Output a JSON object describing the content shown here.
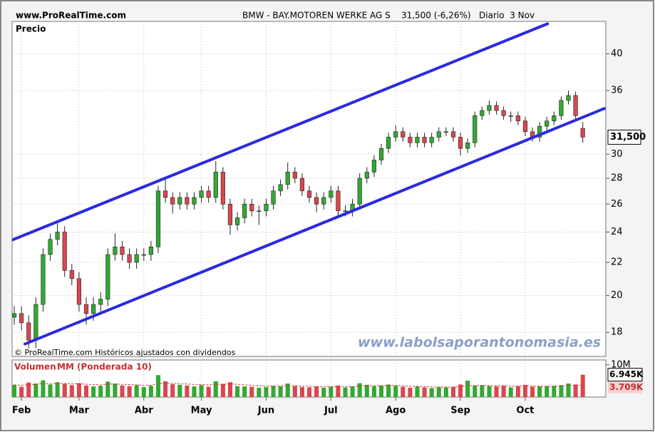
{
  "chart_data": {
    "type": "candlestick",
    "site": "www.ProRealTime.com",
    "title": "BMW - BAY.MOTOREN WERKE AG S    31,500 (-6,26%)   Diario  3 Nov",
    "panel_label": "Precio",
    "copyright": "© ProRealTime.com Históricos ajustados con dividendos",
    "watermark": "www.labolsaporantonomasia.es",
    "up_color": "#33a833",
    "down_color": "#d9474f",
    "log_scale": true,
    "grid": true,
    "xlim": [
      -0.3,
      82.2
    ],
    "xticks": [
      {
        "value": 1,
        "label": "Feb"
      },
      {
        "value": 9,
        "label": "Mar"
      },
      {
        "value": 18,
        "label": "Abr"
      },
      {
        "value": 26,
        "label": "May"
      },
      {
        "value": 35,
        "label": "Jun"
      },
      {
        "value": 44,
        "label": "Jul"
      },
      {
        "value": 53,
        "label": "Ago"
      },
      {
        "value": 62,
        "label": "Sep"
      },
      {
        "value": 71,
        "label": "Oct"
      }
    ],
    "ylim": [
      16.8,
      43.9
    ],
    "yticks": [
      18,
      20,
      22,
      24,
      26,
      28,
      30,
      36,
      40
    ],
    "open": [
      18.8,
      19,
      18.5,
      17.6,
      19.5,
      22.5,
      23.5,
      24,
      21.5,
      21,
      19.5,
      19,
      19.5,
      19.8,
      22.5,
      23,
      22.5,
      22,
      22.5,
      22.5,
      23,
      27,
      26.5,
      26,
      26.5,
      26,
      26.5,
      27,
      26.5,
      28.5,
      26,
      24.5,
      25,
      26,
      25.5,
      25.5,
      26,
      27,
      27.5,
      28.5,
      28,
      27,
      26.5,
      26,
      26.5,
      27,
      25.5,
      25.5,
      26,
      28,
      28.5,
      29.5,
      30.5,
      31.5,
      32,
      31.5,
      31,
      31.5,
      31,
      31.5,
      32,
      32,
      31.5,
      30.5,
      31,
      33.5,
      34,
      34.5,
      34,
      33.5,
      33.5,
      33,
      32,
      31.5,
      32.5,
      33,
      33.5,
      35,
      35.5,
      32.3
    ],
    "high": [
      19.4,
      19.4,
      18.9,
      19.9,
      22.9,
      23.9,
      24.6,
      24.4,
      21.9,
      21.4,
      19.9,
      19.9,
      20.2,
      22.9,
      23.9,
      23.4,
      22.9,
      22.9,
      22.9,
      23.4,
      27.4,
      28,
      26.9,
      26.9,
      26.9,
      26.9,
      27.4,
      27.4,
      29.4,
      28.9,
      26.4,
      25.4,
      26.4,
      26.4,
      25.9,
      26.4,
      27.4,
      27.9,
      29.3,
      28.9,
      28.4,
      27.4,
      26.9,
      26.9,
      27.4,
      27.4,
      25.9,
      26.4,
      28.4,
      28.9,
      29.9,
      30.9,
      31.9,
      32.6,
      32.4,
      31.9,
      31.9,
      31.9,
      31.9,
      32.4,
      32.4,
      32.4,
      31.9,
      31.4,
      33.9,
      34.4,
      35,
      34.9,
      34.4,
      33.9,
      33.9,
      33.4,
      32.4,
      32.9,
      33.4,
      33.9,
      35.4,
      36,
      35.9,
      32.9
    ],
    "low": [
      18.4,
      18.1,
      17.2,
      17.2,
      19.1,
      22.1,
      23.1,
      21.1,
      20.6,
      19.1,
      18.4,
      18.6,
      19.1,
      19.4,
      22.1,
      22.1,
      21.6,
      21.6,
      22.1,
      22.1,
      22.6,
      26.1,
      25.3,
      25.6,
      25.6,
      25.6,
      26.1,
      26.1,
      26.1,
      25.6,
      23.8,
      24.1,
      24.6,
      25.1,
      24.5,
      25.1,
      25.6,
      26.6,
      27.1,
      27.6,
      26.6,
      26.1,
      25.4,
      25.6,
      26.1,
      25.1,
      25.1,
      25.1,
      25.6,
      27.6,
      28.1,
      29.1,
      30.1,
      31.1,
      31.1,
      30.6,
      30.6,
      30.6,
      30.6,
      31.1,
      31.6,
      31.1,
      29.9,
      30.1,
      30.6,
      33.1,
      33.6,
      33.6,
      33.1,
      32.9,
      32.6,
      31.6,
      31.1,
      31.1,
      32.1,
      32.6,
      33.1,
      34.6,
      33.1,
      31
    ],
    "close": [
      19,
      18.5,
      17.6,
      19.5,
      22.5,
      23.5,
      24,
      21.5,
      21,
      19.5,
      19,
      19.5,
      19.8,
      22.5,
      23,
      22.5,
      22,
      22.5,
      22.5,
      23,
      27,
      26.5,
      26,
      26.5,
      26,
      26.5,
      27,
      26.5,
      28.5,
      26,
      24.5,
      25,
      26,
      25.5,
      25.5,
      26,
      27,
      27.5,
      28.5,
      28,
      27,
      26.5,
      26,
      26.5,
      27,
      25.5,
      25.5,
      26,
      28,
      28.5,
      29.5,
      30.5,
      31.5,
      32,
      31.5,
      31,
      31.5,
      31,
      31.5,
      32,
      32,
      31.5,
      30.5,
      31,
      33.5,
      34,
      34.5,
      34,
      33.5,
      33.5,
      33,
      32,
      31.5,
      32.5,
      33,
      33.5,
      35,
      35.5,
      33.5,
      31.5
    ],
    "price_label": {
      "value": 31.5,
      "label": "31,500"
    },
    "trendlines": [
      {
        "color": "#2a2ae0",
        "x": [
          -0.3,
          74.1
        ],
        "y": [
          23.46,
          43.6
        ]
      },
      {
        "color": "#2a2ae0",
        "x": [
          1.48,
          82.0
        ],
        "y": [
          17.41,
          34.2
        ]
      }
    ],
    "volume": {
      "label": "Volumen",
      "ma_name": "MM (Ponderada 10)",
      "ma_color": "#e03030",
      "ylim": [
        0,
        11500
      ],
      "yticks": [
        {
          "value": 10000,
          "label": "10M"
        }
      ],
      "values": [
        3800,
        3200,
        4500,
        4200,
        5200,
        3900,
        4600,
        4100,
        3700,
        4300,
        3600,
        3300,
        3500,
        4800,
        4200,
        3600,
        3400,
        3700,
        3100,
        3500,
        6800,
        4900,
        4000,
        3800,
        3600,
        3300,
        3700,
        3200,
        4900,
        4100,
        4600,
        3400,
        3300,
        3200,
        2900,
        3100,
        3500,
        3300,
        4200,
        3400,
        3100,
        3000,
        3300,
        2900,
        3200,
        3600,
        3000,
        3300,
        4300,
        3800,
        3400,
        3600,
        3900,
        3500,
        3200,
        2900,
        3300,
        3000,
        2800,
        3100,
        3000,
        3200,
        3900,
        5100,
        3600,
        3700,
        3400,
        3300,
        3500,
        3000,
        3400,
        3800,
        3200,
        3300,
        3400,
        3500,
        3700,
        4200,
        3900,
        6945
      ],
      "ma": [
        3800,
        3650,
        3850,
        3950,
        4200,
        4150,
        4250,
        4200,
        4100,
        4150,
        4000,
        3850,
        3800,
        4000,
        4050,
        3950,
        3850,
        3800,
        3650,
        3650,
        4200,
        4300,
        4250,
        4150,
        4050,
        3900,
        3850,
        3750,
        3950,
        3950,
        4100,
        3950,
        3800,
        3650,
        3500,
        3400,
        3400,
        3400,
        3550,
        3500,
        3400,
        3300,
        3300,
        3200,
        3200,
        3300,
        3250,
        3250,
        3450,
        3500,
        3500,
        3500,
        3600,
        3600,
        3500,
        3350,
        3350,
        3250,
        3150,
        3100,
        3100,
        3100,
        3250,
        3550,
        3550,
        3600,
        3550,
        3500,
        3500,
        3400,
        3400,
        3450,
        3400,
        3350,
        3350,
        3400,
        3450,
        3600,
        3650,
        3709
      ],
      "value_label": {
        "value": 6945,
        "label": "6.945K"
      },
      "ma_label": {
        "value": 3709,
        "label": "3.709K"
      }
    }
  }
}
